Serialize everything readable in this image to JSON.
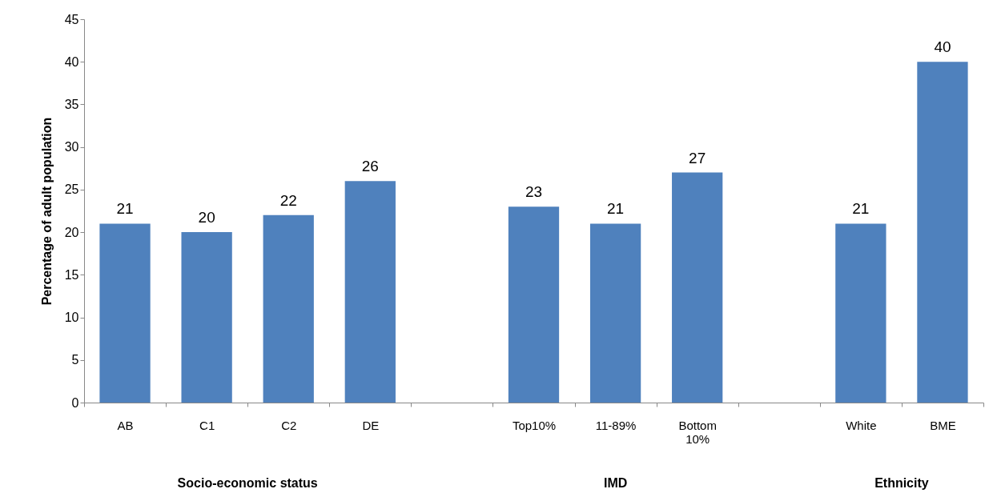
{
  "chart_data": {
    "type": "bar",
    "ylabel": "Percentage of adult population",
    "categories": [
      "AB",
      "C1",
      "C2",
      "DE",
      null,
      "Top10%",
      "11-89%",
      "Bottom 10%",
      null,
      "White",
      "BME"
    ],
    "values": [
      21,
      20,
      22,
      26,
      null,
      23,
      21,
      27,
      null,
      21,
      40
    ],
    "color": "#4f81bd",
    "ylim": [
      0,
      45
    ],
    "yticks": [
      0,
      5,
      10,
      15,
      20,
      25,
      30,
      35,
      40,
      45
    ],
    "grid": false,
    "data_labels": true,
    "annotations": [
      "Socio-economic status",
      "IMD",
      "Ethnicity"
    ]
  }
}
